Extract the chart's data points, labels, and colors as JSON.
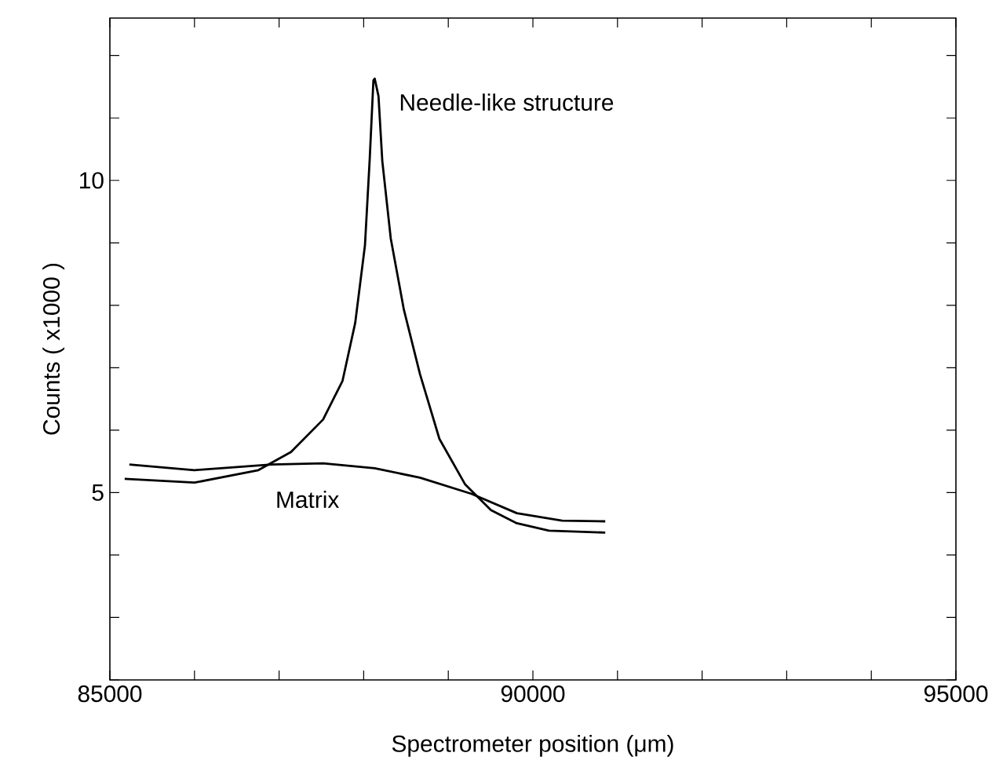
{
  "chart_data": {
    "type": "line",
    "xlabel": "Spectrometer position (μm)",
    "ylabel": "Counts  ( x1000 )",
    "xlim": [
      85000,
      95000
    ],
    "ylim": [
      2,
      12.6
    ],
    "xticks": [
      85000,
      {
        "value": 86000,
        "label": null
      },
      {
        "value": 87000,
        "label": null
      },
      {
        "value": 88000,
        "label": null
      },
      {
        "value": 89000,
        "label": null
      },
      90000,
      {
        "value": 91000,
        "label": null
      },
      {
        "value": 92000,
        "label": null
      },
      {
        "value": 93000,
        "label": null
      },
      {
        "value": 94000,
        "label": null
      },
      95000
    ],
    "yticks": [
      {
        "value": 2,
        "label": null
      },
      {
        "value": 3,
        "label": null
      },
      {
        "value": 4,
        "label": null
      },
      5,
      {
        "value": 6,
        "label": null
      },
      {
        "value": 7,
        "label": null
      },
      {
        "value": 8,
        "label": null
      },
      {
        "value": 9,
        "label": null
      },
      10,
      {
        "value": 11,
        "label": null
      },
      {
        "value": 12,
        "label": null
      }
    ],
    "grid": false,
    "marker": "none",
    "line_style": "solid",
    "legend": false,
    "series": [
      {
        "name": "Needle-like structure",
        "color": "#000000",
        "x": [
          85175,
          86000,
          86755,
          87140,
          87520,
          87750,
          87900,
          88015,
          88070,
          88115,
          88130,
          88175,
          88220,
          88320,
          88475,
          88665,
          88895,
          89200,
          89505,
          89810,
          90190,
          90855
        ],
        "values": [
          5.22,
          5.16,
          5.36,
          5.65,
          6.17,
          6.79,
          7.72,
          8.96,
          10.31,
          11.6,
          11.63,
          11.35,
          10.31,
          9.07,
          7.93,
          6.9,
          5.86,
          5.13,
          4.72,
          4.51,
          4.39,
          4.36
        ]
      },
      {
        "name": "Matrix",
        "color": "#000000",
        "x": [
          85230,
          86000,
          86910,
          87520,
          88130,
          88665,
          89275,
          89810,
          90345,
          90855
        ],
        "values": [
          5.45,
          5.36,
          5.45,
          5.47,
          5.39,
          5.24,
          4.98,
          4.67,
          4.55,
          4.54
        ]
      }
    ]
  }
}
